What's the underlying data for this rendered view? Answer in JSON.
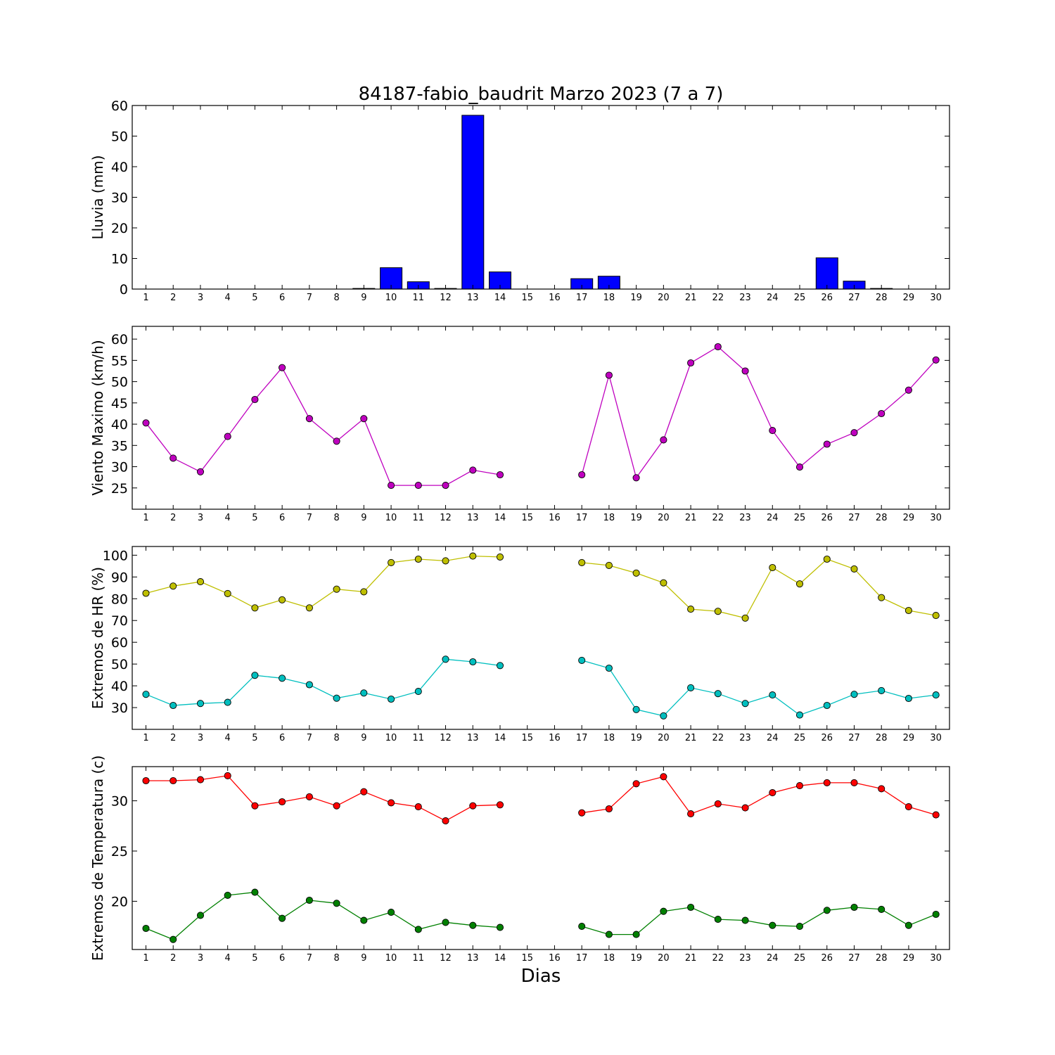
{
  "title": "84187-fabio_baudrit Marzo 2023  (7 a 7)",
  "xlabel": "Dias",
  "chart_data": [
    {
      "type": "bar",
      "ylabel": "Lluvia (mm)",
      "ylim": [
        0,
        60
      ],
      "yticks": [
        0,
        10,
        20,
        30,
        40,
        50,
        60
      ],
      "x": [
        1,
        2,
        3,
        4,
        5,
        6,
        7,
        8,
        9,
        10,
        11,
        12,
        13,
        14,
        15,
        16,
        17,
        18,
        19,
        20,
        21,
        22,
        23,
        24,
        25,
        26,
        27,
        28,
        29,
        30
      ],
      "series": [
        {
          "color": "#0000ff",
          "values": [
            0,
            0,
            0,
            0,
            0,
            0,
            0,
            0,
            0.2,
            7.0,
            2.4,
            0.2,
            56.8,
            5.6,
            0,
            0,
            3.4,
            4.2,
            0,
            0,
            0,
            0,
            0,
            0,
            0,
            10.2,
            2.6,
            0.2,
            0,
            0
          ]
        }
      ]
    },
    {
      "type": "line",
      "ylabel": "Viento Maximo (km/h)",
      "ylim": [
        20,
        63
      ],
      "yticks": [
        25,
        30,
        35,
        40,
        45,
        50,
        55,
        60
      ],
      "x": [
        1,
        2,
        3,
        4,
        5,
        6,
        7,
        8,
        9,
        10,
        11,
        12,
        13,
        14,
        15,
        16,
        17,
        18,
        19,
        20,
        21,
        22,
        23,
        24,
        25,
        26,
        27,
        28,
        29,
        30
      ],
      "series": [
        {
          "color": "#bf00bf",
          "values": [
            40.3,
            32,
            28.8,
            37.1,
            45.8,
            53.3,
            41.3,
            36,
            41.3,
            25.6,
            25.6,
            25.6,
            29.2,
            28.1,
            null,
            null,
            28.1,
            51.5,
            27.4,
            36.3,
            54.4,
            58.2,
            52.5,
            38.5,
            29.9,
            35.3,
            38,
            42.5,
            48,
            55.1
          ]
        }
      ]
    },
    {
      "type": "line",
      "ylabel": "Extremos de HR (%)",
      "ylim": [
        20,
        104
      ],
      "yticks": [
        30,
        40,
        50,
        60,
        70,
        80,
        90,
        100
      ],
      "x": [
        1,
        2,
        3,
        4,
        5,
        6,
        7,
        8,
        9,
        10,
        11,
        12,
        13,
        14,
        15,
        16,
        17,
        18,
        19,
        20,
        21,
        22,
        23,
        24,
        25,
        26,
        27,
        28,
        29,
        30
      ],
      "series": [
        {
          "color": "#bfbf00",
          "values": [
            82.5,
            85.8,
            87.8,
            82.4,
            75.8,
            79.5,
            75.8,
            84.4,
            83.2,
            96.6,
            98.2,
            97.4,
            99.6,
            99.2,
            null,
            null,
            96.6,
            95.3,
            91.8,
            87.3,
            75.2,
            74.2,
            71.1,
            94.3,
            86.8,
            98.2,
            93.7,
            80.5,
            74.6,
            72.3
          ]
        },
        {
          "color": "#00bfbf",
          "values": [
            36.1,
            31.0,
            31.9,
            32.4,
            44.8,
            43.5,
            40.5,
            34.3,
            36.7,
            33.9,
            37.4,
            52.2,
            51.0,
            49.3,
            null,
            null,
            51.7,
            48.1,
            29.1,
            26.2,
            39.1,
            36.4,
            31.9,
            35.8,
            26.6,
            31.0,
            36.1,
            37.8,
            34.2,
            35.8
          ]
        }
      ]
    },
    {
      "type": "line",
      "ylabel": "Extremos de Temperatura (c)",
      "ylim": [
        15.2,
        33.4
      ],
      "yticks": [
        20,
        25,
        30
      ],
      "x": [
        1,
        2,
        3,
        4,
        5,
        6,
        7,
        8,
        9,
        10,
        11,
        12,
        13,
        14,
        15,
        16,
        17,
        18,
        19,
        20,
        21,
        22,
        23,
        24,
        25,
        26,
        27,
        28,
        29,
        30
      ],
      "series": [
        {
          "color": "#ff0000",
          "values": [
            32.0,
            32.0,
            32.1,
            32.5,
            29.5,
            29.9,
            30.4,
            29.5,
            30.9,
            29.8,
            29.4,
            28.0,
            29.5,
            29.6,
            null,
            null,
            28.8,
            29.2,
            31.7,
            32.4,
            28.7,
            29.7,
            29.3,
            30.8,
            31.5,
            31.8,
            31.8,
            31.2,
            29.4,
            28.6
          ]
        },
        {
          "color": "#008000",
          "values": [
            17.3,
            16.2,
            18.6,
            20.6,
            20.9,
            18.3,
            20.1,
            19.8,
            18.1,
            18.9,
            17.2,
            17.9,
            17.6,
            17.4,
            null,
            null,
            17.5,
            16.7,
            16.7,
            19.0,
            19.4,
            18.2,
            18.1,
            17.6,
            17.5,
            19.1,
            19.4,
            19.2,
            17.6,
            18.7
          ]
        }
      ]
    }
  ]
}
